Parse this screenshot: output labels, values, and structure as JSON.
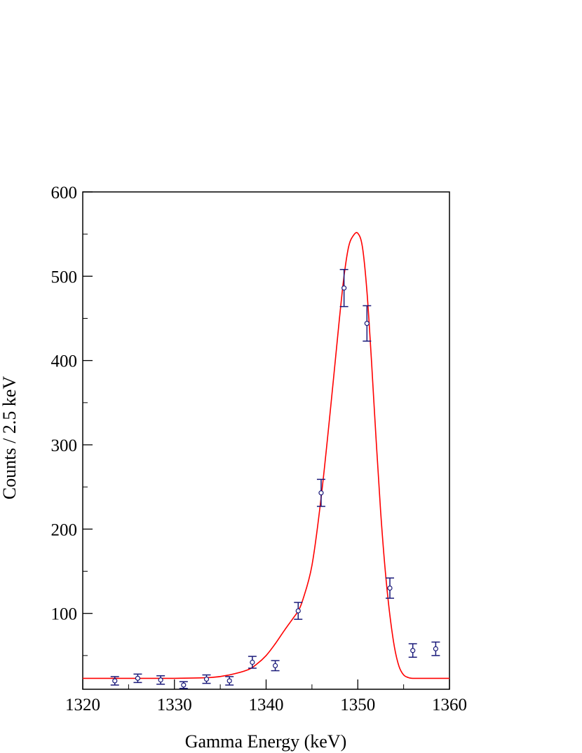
{
  "chart_data": {
    "type": "scatter",
    "xlabel": "Gamma Energy (keV)",
    "ylabel": "Counts / 2.5 keV",
    "xlim": [
      1320,
      1360
    ],
    "ylim": [
      10,
      600
    ],
    "xticks": [
      1320,
      1330,
      1340,
      1350,
      1360
    ],
    "yticks": [
      100,
      200,
      300,
      400,
      500,
      600
    ],
    "grid": false,
    "legend": "none",
    "series": [
      {
        "kind": "points_with_errors",
        "color": "#1a1a7a",
        "x": [
          1323.5,
          1326.0,
          1328.5,
          1331.0,
          1333.5,
          1336.0,
          1338.5,
          1341.0,
          1343.5,
          1346.0,
          1348.5,
          1351.0,
          1353.5,
          1356.0,
          1358.5
        ],
        "y": [
          20,
          23,
          21,
          15,
          22,
          20,
          42,
          38,
          103,
          243,
          486,
          444,
          130,
          56,
          58
        ],
        "err": [
          5,
          5,
          5,
          4,
          5,
          5,
          7,
          6,
          10,
          16,
          22,
          21,
          12,
          8,
          8
        ]
      },
      {
        "kind": "fit_curve",
        "color": "#ff0000",
        "x": [
          1320,
          1325,
          1330,
          1334,
          1336,
          1338,
          1339,
          1340,
          1341,
          1342,
          1343,
          1343.5,
          1344,
          1345,
          1346,
          1347,
          1348,
          1348.5,
          1349,
          1349.5,
          1350,
          1350.5,
          1351,
          1351.5,
          1352,
          1352.5,
          1353,
          1353.5,
          1354,
          1354.5,
          1355,
          1355.5,
          1356,
          1358,
          1360
        ],
        "y": [
          23,
          23,
          23,
          24,
          27,
          33,
          40,
          50,
          64,
          80,
          95,
          103,
          116,
          157,
          237,
          340,
          450,
          500,
          535,
          548,
          551,
          535,
          482,
          398,
          306,
          220,
          150,
          98,
          60,
          37,
          27,
          24,
          23,
          23,
          23
        ]
      }
    ]
  }
}
